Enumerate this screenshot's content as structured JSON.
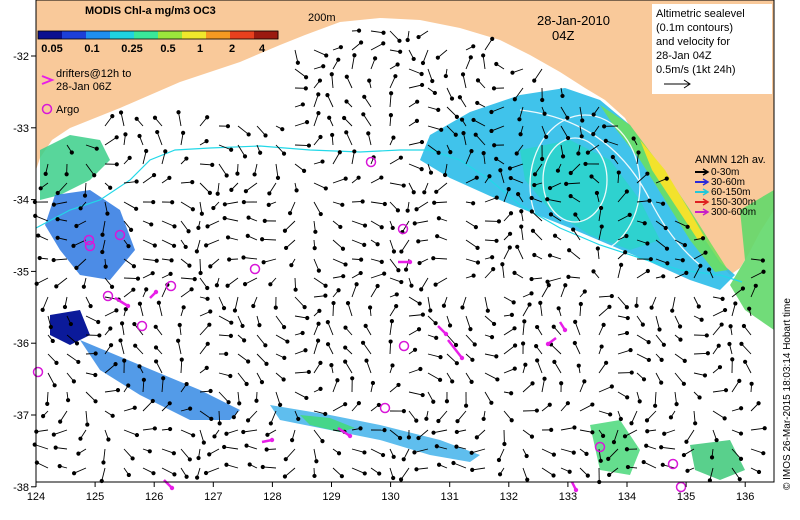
{
  "map": {
    "title_date": "28-Jan-2010",
    "title_time": "04Z",
    "isobath_label": "200m",
    "colorbar": {
      "title": "MODIS Chl-a mg/m3 OC3",
      "ticks": [
        "0.05",
        "0.1",
        "0.25",
        "0.5",
        "1",
        "2",
        "4"
      ],
      "colors": [
        "#0b0f8f",
        "#1d3fd8",
        "#1f8ff0",
        "#1fd3e0",
        "#39e89a",
        "#9be63c",
        "#f0e82c",
        "#f59a22",
        "#e8401e",
        "#9b1a10"
      ]
    },
    "drifters_legend": "drifters@12h to 28-Jan 06Z",
    "argo_legend": "Argo",
    "altimetry_note": [
      "Altimetric sealevel",
      "(0.1m contours)",
      "and velocity for",
      "28-Jan 04Z",
      "0.5m/s (1kt 24h)"
    ],
    "anmn": {
      "title": "ANMN 12h av.",
      "items": [
        {
          "label": "0-30m",
          "color": "#000000"
        },
        {
          "label": "30-60m",
          "color": "#2a2ad8"
        },
        {
          "label": "60-150m",
          "color": "#22c8d8"
        },
        {
          "label": "150-300m",
          "color": "#e02020"
        },
        {
          "label": "300-600m",
          "color": "#c81ec8"
        }
      ]
    },
    "x_ticks": [
      "124",
      "125",
      "126",
      "127",
      "128",
      "129",
      "130",
      "131",
      "132",
      "133",
      "134",
      "135",
      "136"
    ],
    "y_ticks": [
      "-32",
      "-33",
      "-34",
      "-35",
      "-36",
      "-37",
      "-38"
    ],
    "credit": "© IMOS 26-Mar-2015 18:03:14 Hobart time",
    "land_color": "#f9c99a",
    "argo_color": "#d817d8",
    "drifter_color": "#e81ee8",
    "isobath_color": "#22d8e8"
  }
}
